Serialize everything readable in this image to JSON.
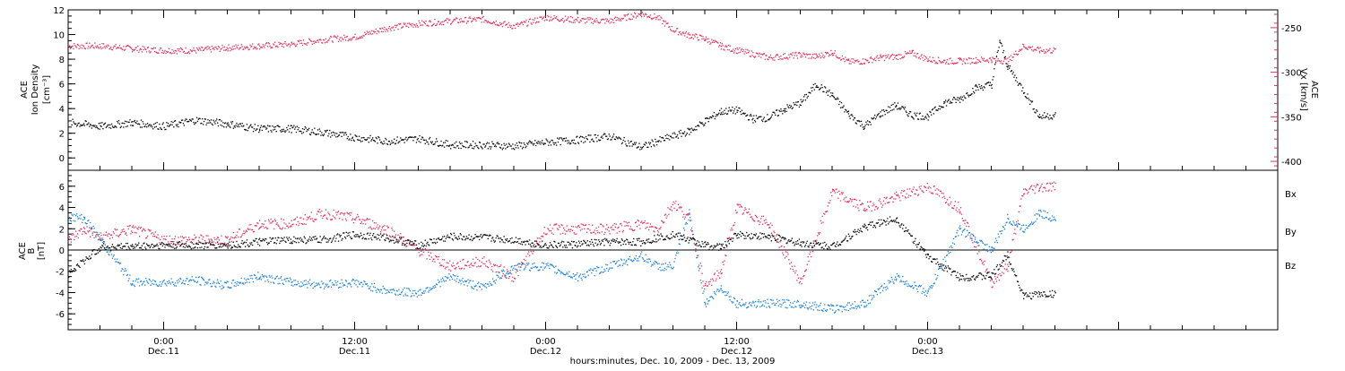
{
  "colors": {
    "density": "#000000",
    "vx": "#e0305a",
    "bx": "#000000",
    "by": "#1a7fd6",
    "bz": "#e0305a",
    "axis": "#000000"
  },
  "chart_data": [
    {
      "type": "scatter",
      "panel": "top",
      "grid": false,
      "ylabel_left": [
        "ACE",
        "Ion Density",
        "[cm⁻³]"
      ],
      "ylabel_right": [
        "ACE",
        "Vx [km/s]"
      ],
      "xlim_hours": [
        -6,
        70
      ],
      "ylim_left": [
        -1,
        12
      ],
      "ylim_right": [
        -410,
        -230
      ],
      "yticks_left": [
        "0",
        "2",
        "4",
        "6",
        "8",
        "10",
        "12"
      ],
      "yticks_right": [
        "-250",
        "-300",
        "-350",
        "-400"
      ],
      "series": [
        {
          "axis": "left",
          "color_key": "density",
          "x": [
            -5.8,
            -4,
            -2,
            0,
            2,
            4,
            6,
            8,
            10,
            12,
            14,
            16,
            18,
            20,
            22,
            24,
            26,
            28,
            30,
            31,
            33,
            34,
            35,
            36,
            37,
            38,
            39,
            40,
            41,
            42,
            43,
            44,
            45,
            46,
            47,
            48,
            49,
            50,
            51,
            52,
            52.5,
            53,
            54,
            55,
            56
          ],
          "y": [
            2.9,
            2.6,
            2.9,
            2.6,
            3.1,
            2.8,
            2.4,
            2.4,
            2.1,
            1.7,
            1.4,
            1.6,
            1.1,
            1.1,
            1.0,
            1.3,
            1.5,
            1.8,
            0.9,
            1.4,
            2.2,
            3.0,
            3.8,
            3.9,
            3.2,
            3.3,
            4.0,
            4.5,
            6.0,
            5.1,
            3.6,
            2.6,
            3.6,
            4.3,
            3.5,
            3.4,
            4.5,
            4.8,
            5.7,
            6.0,
            9.5,
            7.5,
            5.5,
            3.4,
            3.5
          ]
        },
        {
          "axis": "right",
          "color_key": "vx",
          "x": [
            -6,
            -4,
            -2,
            0,
            2,
            4,
            6,
            8,
            10,
            12,
            14,
            16,
            18,
            20,
            22,
            24,
            26,
            28,
            30,
            31,
            32,
            33,
            34,
            35,
            36,
            38,
            40,
            41,
            42,
            43,
            44,
            45,
            46,
            47,
            48,
            49,
            50,
            51,
            52,
            53,
            54,
            55,
            56
          ],
          "y": [
            -270,
            -270,
            -273,
            -275,
            -275,
            -272,
            -270,
            -268,
            -263,
            -260,
            -250,
            -245,
            -242,
            -240,
            -248,
            -238,
            -241,
            -242,
            -234,
            -238,
            -252,
            -258,
            -262,
            -270,
            -275,
            -283,
            -280,
            -282,
            -277,
            -288,
            -287,
            -283,
            -282,
            -278,
            -285,
            -287,
            -287,
            -286,
            -285,
            -287,
            -270,
            -275,
            -275
          ]
        }
      ]
    },
    {
      "type": "scatter",
      "panel": "bottom",
      "grid": false,
      "zero_line": true,
      "ylabel_left": [
        "ACE",
        "B",
        "[nT]"
      ],
      "xlim_hours": [
        -6,
        70
      ],
      "ylim": [
        -7.5,
        7.5
      ],
      "yticks": [
        "-6",
        "-4",
        "-2",
        "0",
        "2",
        "4",
        "6"
      ],
      "legend": [
        "Bx",
        "By",
        "Bz"
      ],
      "legend_position": "right",
      "series": [
        {
          "name": "Bx",
          "color_key": "bx",
          "x": [
            -6,
            -4,
            -2,
            0,
            2,
            4,
            6,
            8,
            10,
            12,
            14,
            16,
            18,
            20,
            22,
            24,
            26,
            28,
            30,
            31,
            32,
            33,
            34,
            35,
            36,
            38,
            40,
            42,
            44,
            46,
            48,
            50,
            52,
            53,
            54,
            55,
            56
          ],
          "y": [
            -2.2,
            0.3,
            0.4,
            0.5,
            0.5,
            0.5,
            0.8,
            1.0,
            1.0,
            1.5,
            1.2,
            0.5,
            1.3,
            1.2,
            1.0,
            0.5,
            0.6,
            0.8,
            0.8,
            1.2,
            1.5,
            1.0,
            0.5,
            0.3,
            1.5,
            1.3,
            0.7,
            0.4,
            2.2,
            3.0,
            -0.6,
            -2.5,
            -2.4,
            -0.4,
            -4.3,
            -4.1,
            -4.1
          ]
        },
        {
          "name": "By",
          "color_key": "by",
          "x": [
            -6,
            -5,
            -4,
            -2,
            0,
            2,
            4,
            6,
            8,
            10,
            12,
            14,
            16,
            18,
            20,
            22,
            24,
            26,
            28,
            30,
            31,
            32,
            33,
            34,
            35,
            36,
            38,
            40,
            42,
            44,
            46,
            48,
            50,
            52,
            53,
            54,
            55,
            56
          ],
          "y": [
            3.2,
            3.0,
            1.0,
            -3.0,
            -3.0,
            -2.8,
            -3.3,
            -2.4,
            -3.0,
            -3.2,
            -3.0,
            -3.8,
            -4.0,
            -2.5,
            -3.5,
            -1.5,
            -1.5,
            -2.5,
            -1.5,
            -0.5,
            -1.5,
            -1.5,
            3.5,
            -5.0,
            -3.5,
            -5.0,
            -5.0,
            -5.0,
            -5.5,
            -5.0,
            -2.5,
            -4.0,
            2.0,
            0.0,
            3.0,
            2.0,
            3.5,
            3.0
          ]
        },
        {
          "name": "Bz",
          "color_key": "bz",
          "x": [
            -6,
            -5,
            -4,
            -2,
            0,
            2,
            4,
            6,
            8,
            10,
            12,
            14,
            16,
            18,
            20,
            22,
            24,
            26,
            28,
            30,
            31,
            32,
            33,
            34,
            35,
            36,
            38,
            40,
            42,
            44,
            46,
            48,
            50,
            52,
            53,
            54,
            55,
            56
          ],
          "y": [
            1.0,
            2.0,
            1.2,
            2.0,
            1.0,
            1.0,
            1.0,
            2.5,
            2.5,
            3.5,
            3.0,
            2.0,
            0.0,
            -1.5,
            -1.0,
            -2.5,
            2.0,
            2.0,
            2.0,
            2.5,
            2.0,
            4.5,
            3.0,
            -3.5,
            -2.0,
            4.0,
            2.5,
            -3.0,
            5.5,
            4.0,
            5.0,
            6.0,
            4.0,
            -3.0,
            -1.5,
            5.5,
            6.0,
            6.0
          ]
        }
      ]
    }
  ],
  "x_axis": {
    "ticks": [
      {
        "hour": 0,
        "time": "0:00",
        "date": "Dec.11"
      },
      {
        "hour": 12,
        "time": "12:00",
        "date": "Dec.11"
      },
      {
        "hour": 24,
        "time": "0:00",
        "date": "Dec.12"
      },
      {
        "hour": 36,
        "time": "12:00",
        "date": "Dec.12"
      },
      {
        "hour": 48,
        "time": "0:00",
        "date": "Dec.13"
      }
    ],
    "label": "hours:minutes, Dec. 10, 2009 - Dec. 13, 2009"
  }
}
